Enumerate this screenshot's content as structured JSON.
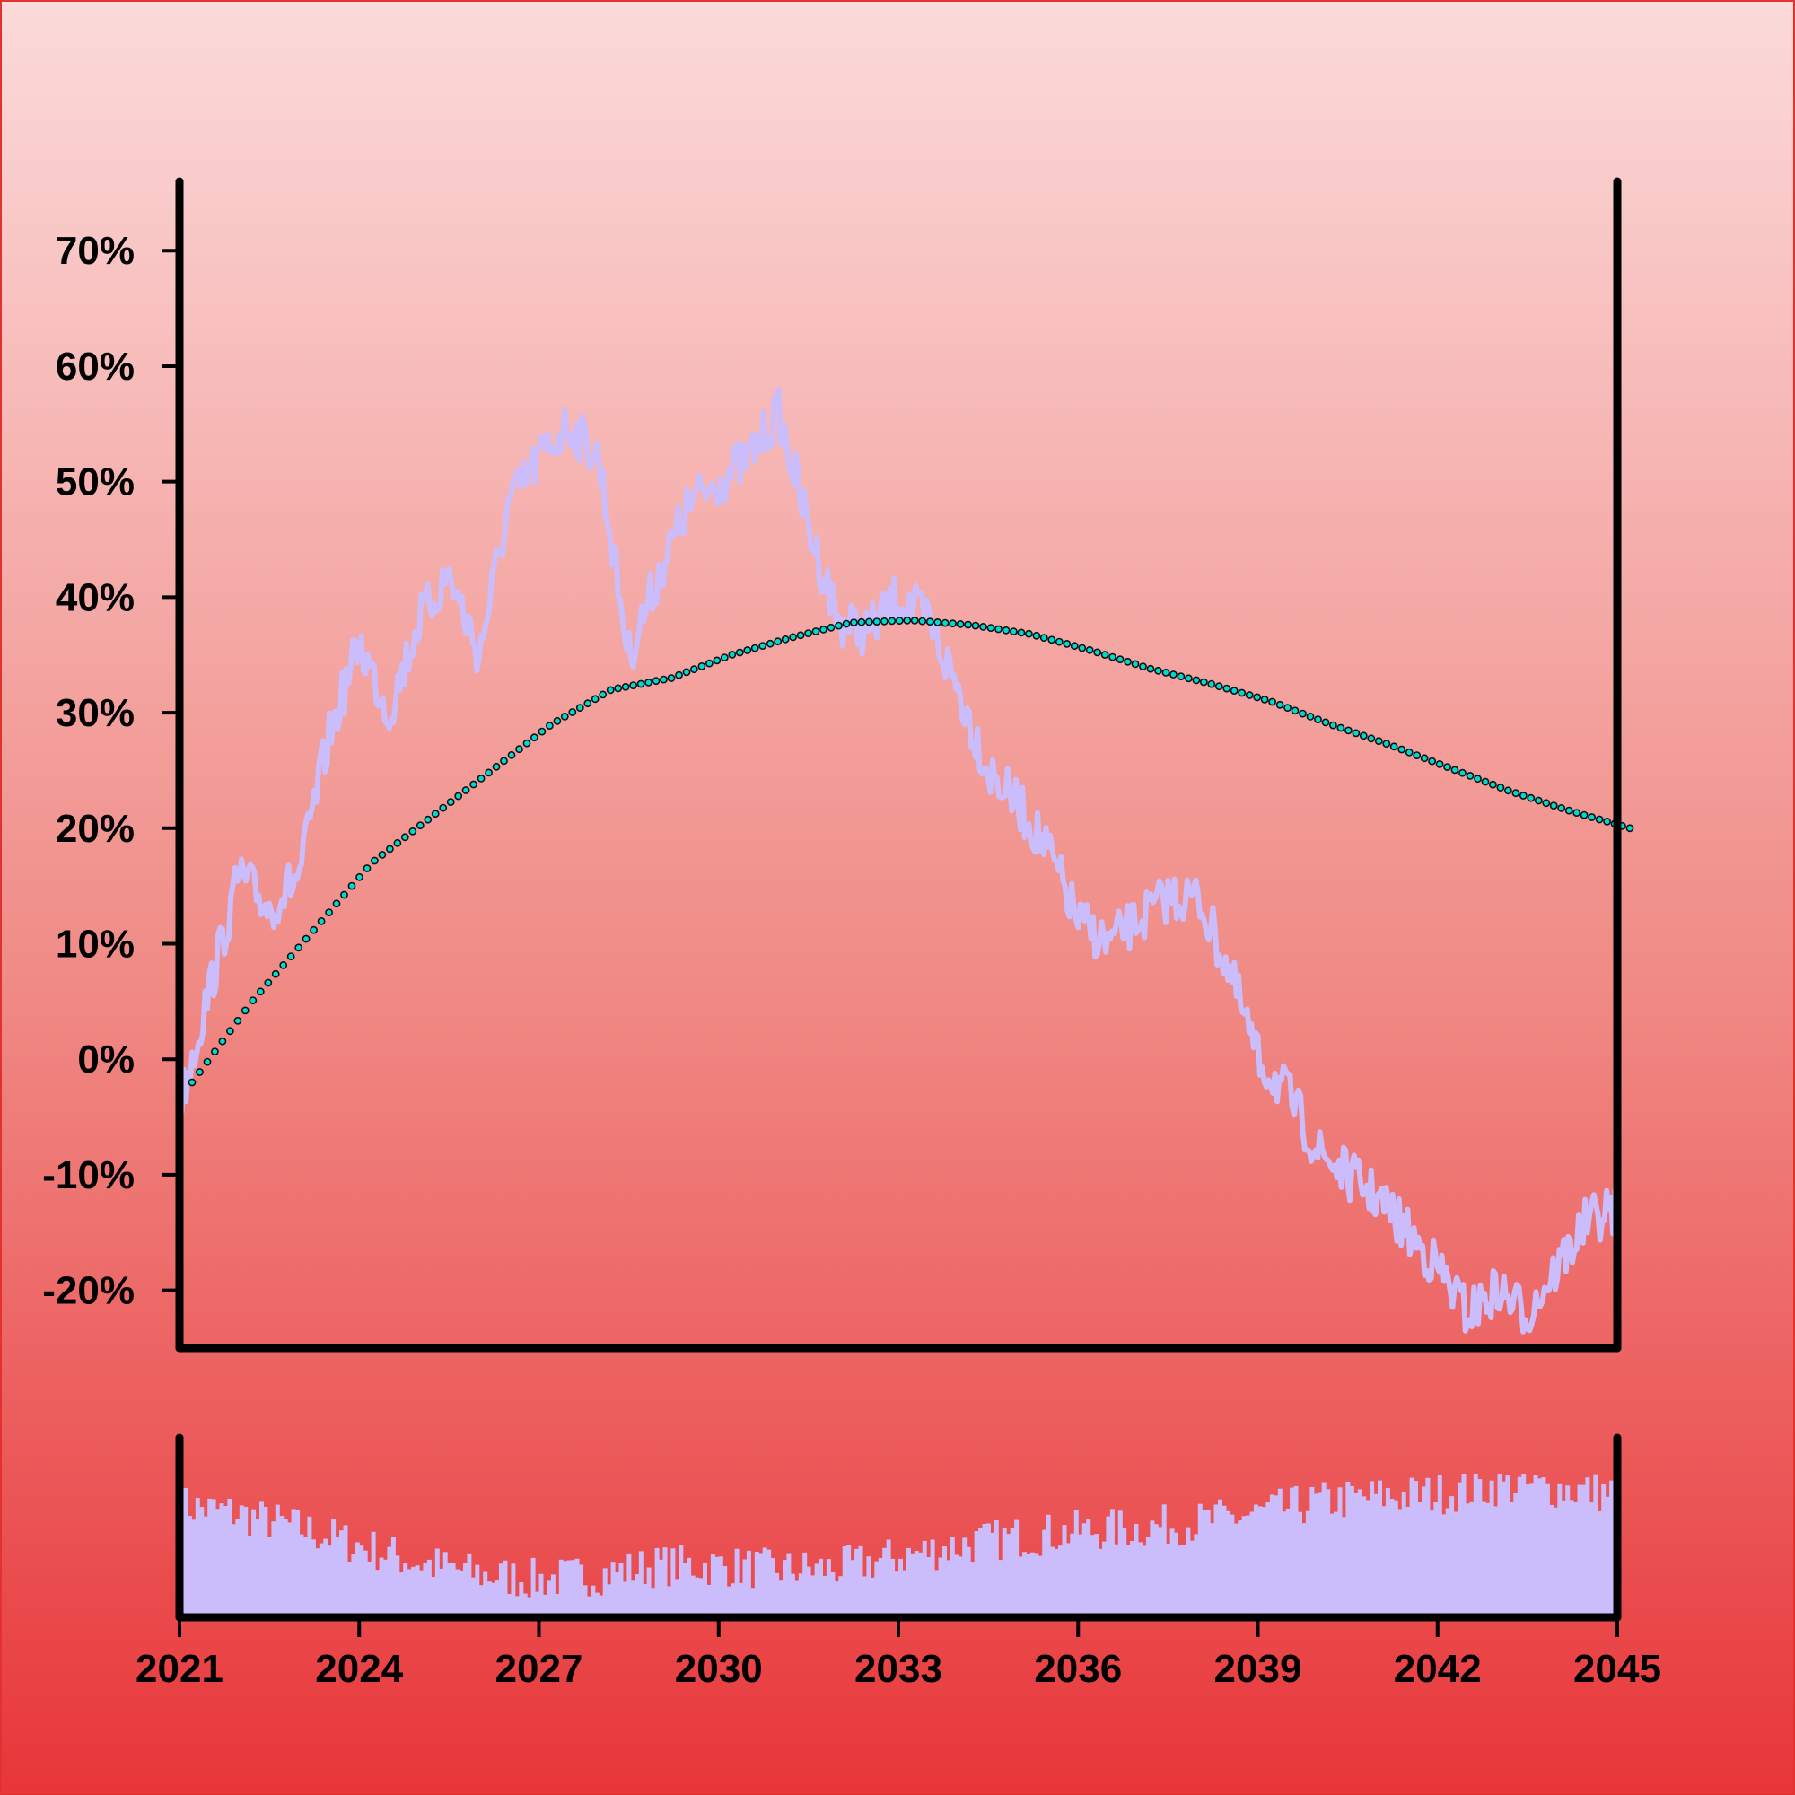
{
  "chart_data": {
    "type": "line",
    "x_axis": {
      "range": [
        "2021-01-01",
        "2045-01-01"
      ],
      "tick_labels": [
        "2021",
        "2024",
        "2027",
        "2030",
        "2033",
        "2036",
        "2039",
        "2042",
        "2045"
      ]
    },
    "y_axis": {
      "range": [
        -25,
        76
      ],
      "unit": "%",
      "tick_values": [
        -20,
        -10,
        0,
        10,
        20,
        30,
        40,
        50,
        60,
        70
      ],
      "tick_labels": [
        "-20%",
        "-10%",
        "0%",
        "10%",
        "20%",
        "30%",
        "40%",
        "50%",
        "60%",
        "70%"
      ]
    },
    "grid": false,
    "series": [
      {
        "kind": "line",
        "color": "#cbbcfc",
        "x": [
          "2021-01",
          "2021-07",
          "2022-01",
          "2022-07",
          "2023-01",
          "2023-07",
          "2024-01",
          "2024-07",
          "2025-01",
          "2025-07",
          "2026-01",
          "2026-07",
          "2027-01",
          "2027-07",
          "2028-01",
          "2028-07",
          "2029-01",
          "2029-07",
          "2030-01",
          "2030-07",
          "2031-01",
          "2031-07",
          "2032-01",
          "2032-07",
          "2033-01",
          "2033-07",
          "2034-01",
          "2034-07",
          "2035-01",
          "2035-07",
          "2036-01",
          "2036-07",
          "2037-01",
          "2037-07",
          "2038-01",
          "2038-07",
          "2039-01",
          "2039-07",
          "2040-01",
          "2040-07",
          "2041-01",
          "2041-07",
          "2042-01",
          "2042-07",
          "2043-01",
          "2043-07",
          "2044-01",
          "2044-07",
          "2045-01"
        ],
        "values": [
          -4,
          6,
          16,
          13,
          16,
          28,
          36,
          30,
          38,
          42,
          35,
          48,
          52,
          55,
          52,
          35,
          42,
          48,
          50,
          52,
          56,
          46,
          38,
          37,
          40,
          38,
          32,
          25,
          22,
          18,
          12,
          10,
          12,
          14,
          14,
          8,
          0,
          -3,
          -8,
          -10,
          -12,
          -15,
          -18,
          -22,
          -20,
          -22,
          -18,
          -14,
          -13
        ]
      },
      {
        "kind": "dotted-line",
        "color": "#00d8d0",
        "x": [
          "2021-01",
          "2022-01",
          "2023-01",
          "2024-01",
          "2025-01",
          "2026-01",
          "2027-01",
          "2028-01",
          "2029-01",
          "2030-01",
          "2031-01",
          "2032-01",
          "2033-01",
          "2034-01",
          "2035-01",
          "2036-01",
          "2037-01",
          "2038-01",
          "2039-01",
          "2040-01",
          "2041-01",
          "2042-01",
          "2043-01",
          "2044-01",
          "2045-01"
        ],
        "values": [
          -2,
          5,
          11,
          17,
          21,
          25,
          29,
          32,
          33,
          35,
          36.5,
          37.8,
          38,
          37.6,
          36.8,
          35.4,
          33.8,
          32.5,
          31,
          29,
          27.2,
          25.2,
          23.2,
          21.5,
          20
        ]
      }
    ],
    "lower_panel": {
      "type": "bar",
      "color": "#cbbcfc",
      "x": [
        "2021",
        "2022",
        "2023",
        "2024",
        "2025",
        "2026",
        "2027",
        "2028",
        "2029",
        "2030",
        "2031",
        "2032",
        "2033",
        "2034",
        "2035",
        "2036",
        "2037",
        "2038",
        "2039",
        "2040",
        "2041",
        "2042",
        "2043",
        "2044",
        "2045"
      ],
      "values": [
        0.78,
        0.72,
        0.62,
        0.5,
        0.38,
        0.3,
        0.26,
        0.3,
        0.36,
        0.36,
        0.33,
        0.34,
        0.42,
        0.5,
        0.56,
        0.6,
        0.62,
        0.66,
        0.72,
        0.8,
        0.84,
        0.86,
        0.92,
        0.9,
        0.86
      ]
    }
  }
}
